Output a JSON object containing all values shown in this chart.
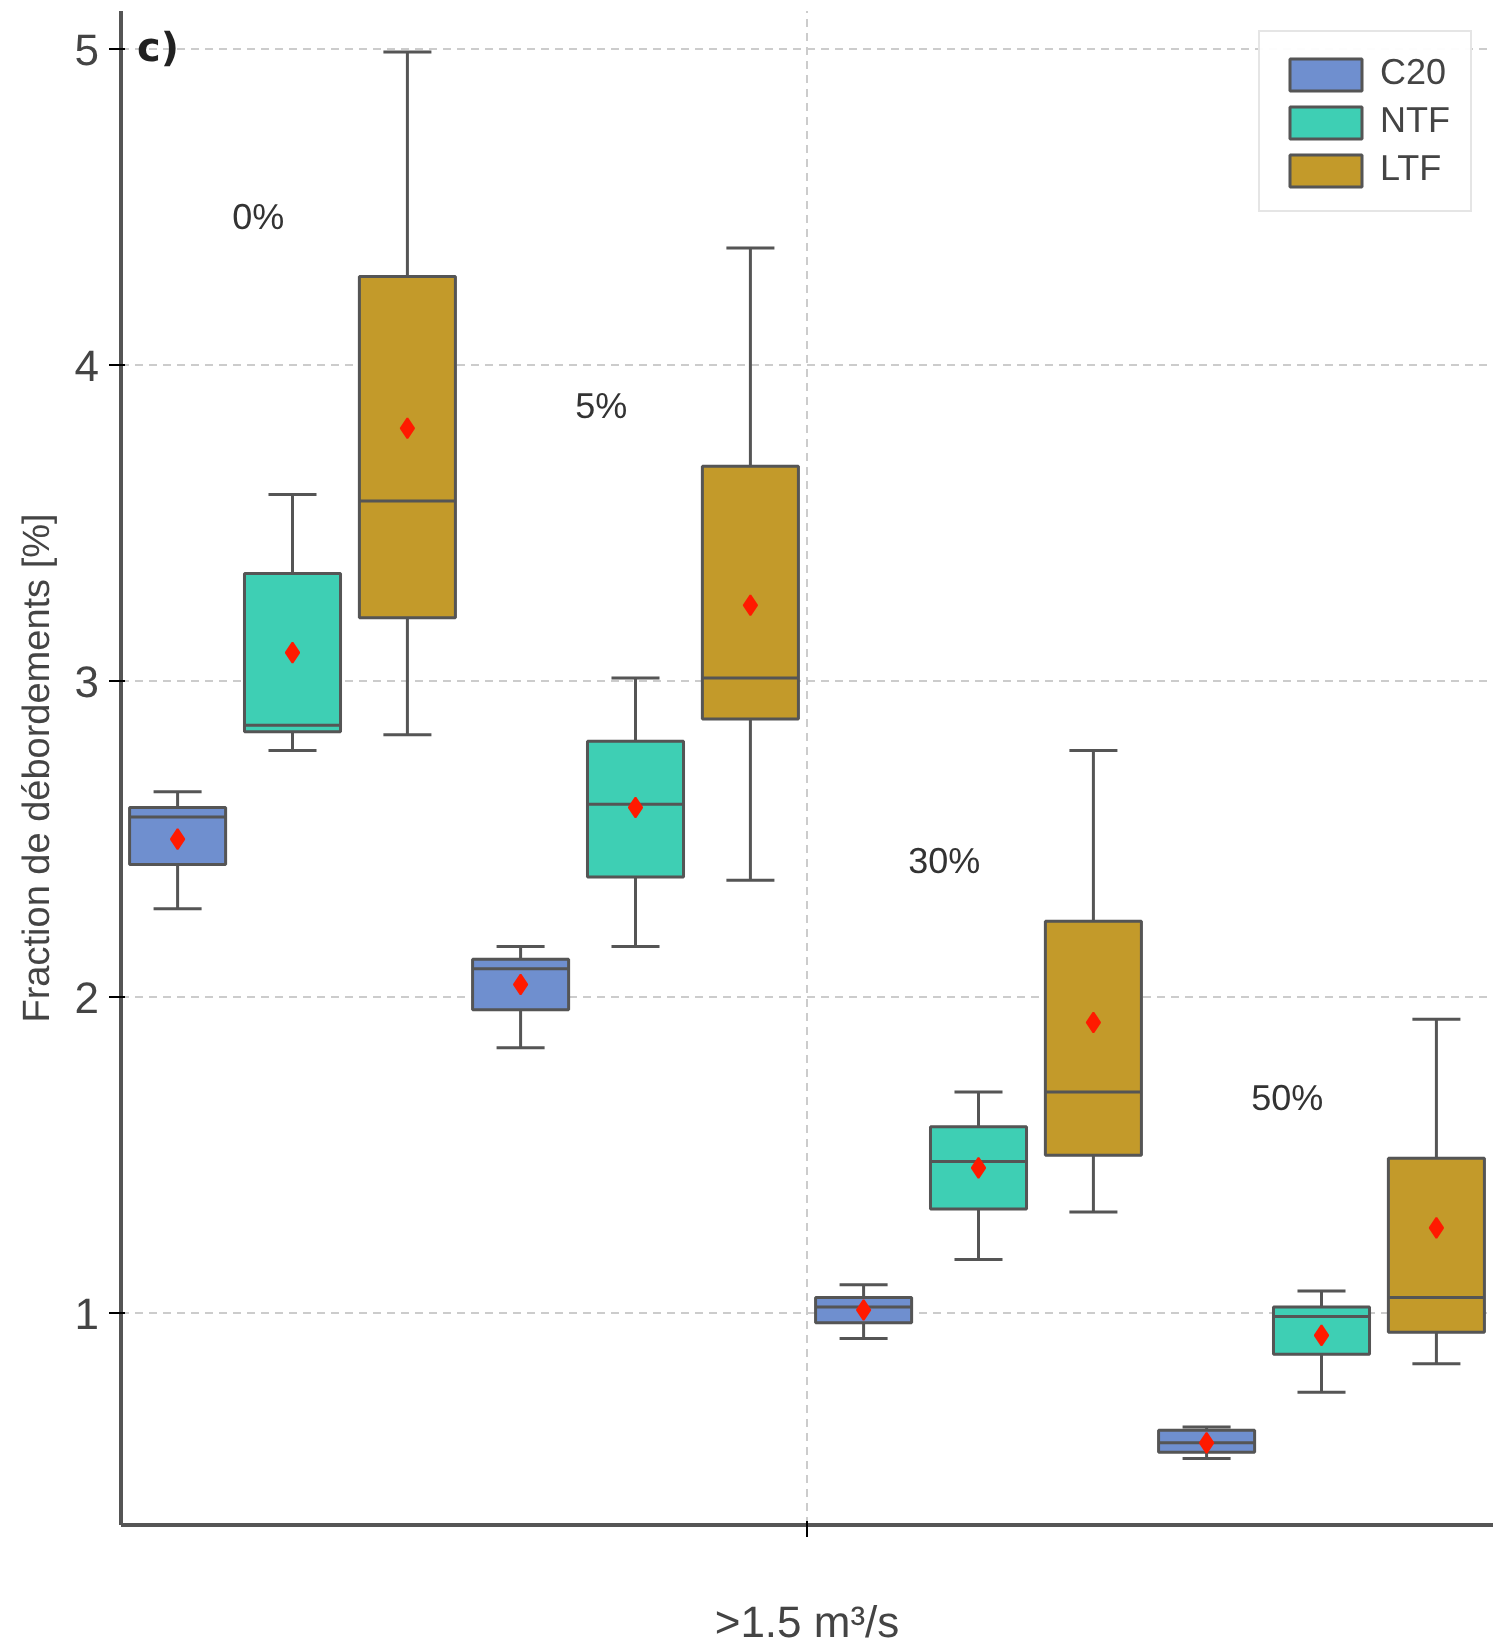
{
  "chart_data": {
    "type": "box",
    "ylabel": "Fraction de débordements [%]",
    "xlabel": ">1.5 m³/s",
    "categories": [
      null,
      null,
      null,
      null
    ],
    "ylim": [
      0.33,
      5.12
    ],
    "yticks": [
      1,
      2,
      3,
      4,
      5
    ],
    "tick_labels": "y",
    "grid": true,
    "legend": "top right",
    "marker": "diamond",
    "annotations": [
      "c)",
      "0%",
      "5%",
      "30%",
      "50%"
    ],
    "series": [
      {
        "name": "C20",
        "color": "#6f8fcf",
        "boxes": [
          {
            "low": 2.28,
            "q1": 2.42,
            "median": 2.57,
            "q3": 2.6,
            "high": 2.65,
            "mean": 2.5
          },
          {
            "low": 1.84,
            "q1": 1.96,
            "median": 2.09,
            "q3": 2.12,
            "high": 2.16,
            "mean": 2.04
          },
          {
            "low": 0.92,
            "q1": 0.97,
            "median": 1.02,
            "q3": 1.05,
            "high": 1.09,
            "mean": 1.01
          },
          {
            "low": 0.54,
            "q1": 0.56,
            "median": 0.59,
            "q3": 0.63,
            "high": 0.64,
            "mean": 0.59
          }
        ]
      },
      {
        "name": "NTF",
        "color": "#3ecfb4",
        "boxes": [
          {
            "low": 2.78,
            "q1": 2.84,
            "median": 2.86,
            "q3": 3.34,
            "high": 3.59,
            "mean": 3.09
          },
          {
            "low": 2.16,
            "q1": 2.38,
            "median": 2.61,
            "q3": 2.81,
            "high": 3.01,
            "mean": 2.6
          },
          {
            "low": 1.17,
            "q1": 1.33,
            "median": 1.48,
            "q3": 1.59,
            "high": 1.7,
            "mean": 1.46
          },
          {
            "low": 0.75,
            "q1": 0.87,
            "median": 0.99,
            "q3": 1.02,
            "high": 1.07,
            "mean": 0.93
          }
        ]
      },
      {
        "name": "LTF",
        "color": "#c39a2a",
        "boxes": [
          {
            "low": 2.83,
            "q1": 3.2,
            "median": 3.57,
            "q3": 4.28,
            "high": 4.99,
            "mean": 3.8
          },
          {
            "low": 2.37,
            "q1": 2.88,
            "median": 3.01,
            "q3": 3.68,
            "high": 4.37,
            "mean": 3.24
          },
          {
            "low": 1.32,
            "q1": 1.5,
            "median": 1.7,
            "q3": 2.24,
            "high": 2.78,
            "mean": 1.92
          },
          {
            "low": 0.84,
            "q1": 0.94,
            "median": 1.05,
            "q3": 1.49,
            "high": 1.93,
            "mean": 1.27
          }
        ]
      }
    ]
  }
}
